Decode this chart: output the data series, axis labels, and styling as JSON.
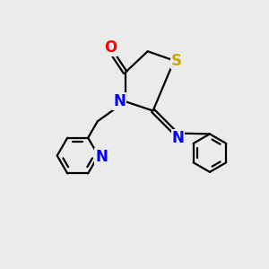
{
  "background_color": "#ebebeb",
  "bond_color": "#000000",
  "bond_width": 1.6,
  "atom_colors": {
    "O": "#ff0000",
    "N": "#0000ff",
    "S": "#ccaa00",
    "C": "#000000"
  },
  "font_size": 12,
  "figsize": [
    3.0,
    3.0
  ],
  "dpi": 100
}
